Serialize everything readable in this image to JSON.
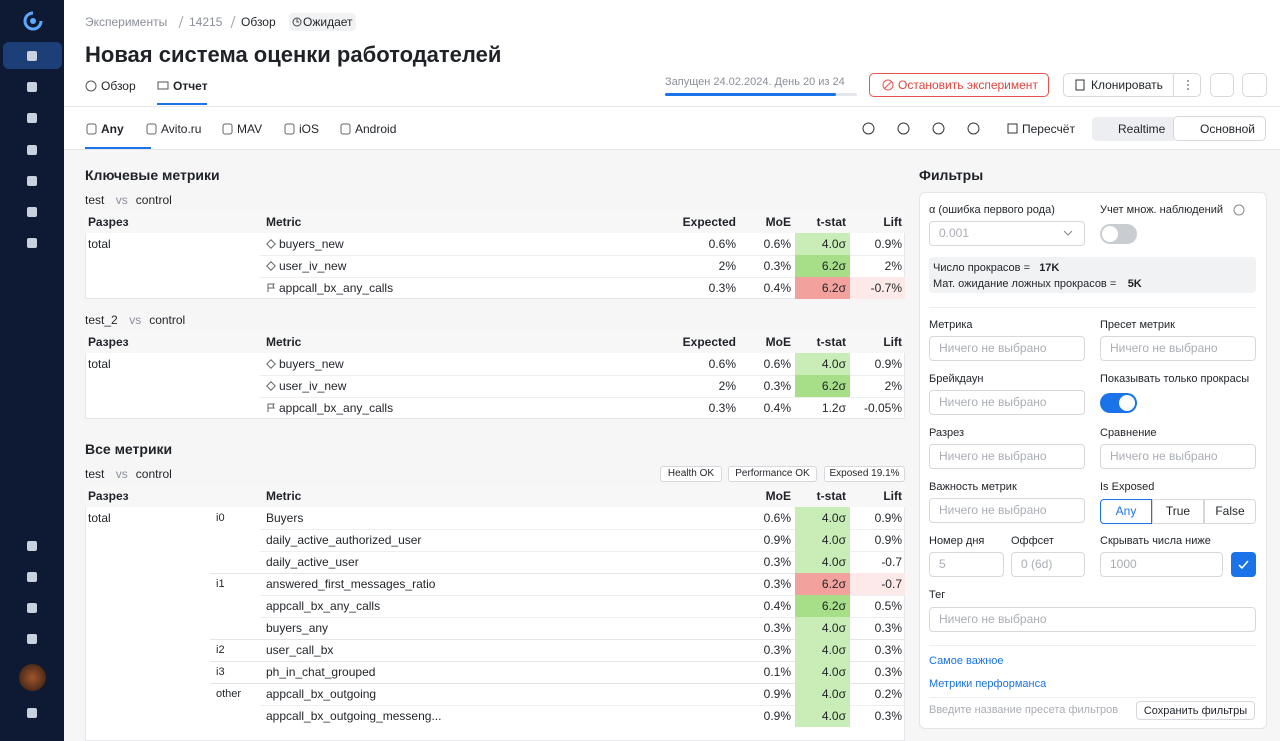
{
  "breadcrumbs": [
    "Эксперименты",
    "14215",
    "Обзор"
  ],
  "status": "Ожидает",
  "title": "Новая система оценки работодателей",
  "view_tabs": [
    "Обзор",
    "Отчет"
  ],
  "launch_info": "Запущен 24.02.2024. День 20 из 24",
  "actions": {
    "stop": "Остановить эксперимент",
    "clone": "Клонировать"
  },
  "platforms": [
    "Any",
    "Avito.ru",
    "MAV",
    "iOS",
    "Android"
  ],
  "toolbar": {
    "recalc": "Пересчёт",
    "realtime": "Realtime",
    "main": "Основной"
  },
  "key_metrics": {
    "title": "Ключевые метрики",
    "columns": [
      "Разрез",
      "Metric",
      "Expected",
      "MoE",
      "t-stat",
      "Lift"
    ],
    "tables": [
      {
        "test": "test",
        "vs": "vs",
        "control": "control",
        "groups": [
          {
            "slice": "total",
            "rows": [
              {
                "icon": "diamond",
                "metric": "buyers_new",
                "expected": "0.6%",
                "moe": "0.6%",
                "tstat": "4.0σ",
                "lift": "0.9%",
                "tstat_bg": "#c9edb6"
              },
              {
                "icon": "diamond",
                "metric": "user_iv_new",
                "expected": "2%",
                "moe": "0.3%",
                "tstat": "6.2σ",
                "lift": "2%",
                "tstat_bg": "#a6df88"
              },
              {
                "icon": "flag",
                "metric": "appcall_bx_any_calls",
                "expected": "0.3%",
                "moe": "0.4%",
                "tstat": "6.2σ",
                "lift": "-0.7%",
                "tstat_bg": "#f3a19d",
                "lift_bg": "#fde9e7"
              }
            ]
          }
        ]
      },
      {
        "test": "test_2",
        "vs": "vs",
        "control": "control",
        "groups": [
          {
            "slice": "total",
            "rows": [
              {
                "icon": "diamond",
                "metric": "buyers_new",
                "expected": "0.6%",
                "moe": "0.6%",
                "tstat": "4.0σ",
                "lift": "0.9%",
                "tstat_bg": "#c9edb6"
              },
              {
                "icon": "diamond",
                "metric": "user_iv_new",
                "expected": "2%",
                "moe": "0.3%",
                "tstat": "6.2σ",
                "lift": "2%",
                "tstat_bg": "#a6df88"
              },
              {
                "icon": "flag",
                "metric": "appcall_bx_any_calls",
                "expected": "0.3%",
                "moe": "0.4%",
                "tstat": "1.2σ",
                "lift": "-0.05%"
              }
            ]
          }
        ]
      }
    ]
  },
  "all_metrics": {
    "title": "Все метрики",
    "test": "test",
    "vs": "vs",
    "control": "control",
    "badges": [
      "Health OK",
      "Performance OK",
      "Exposed 19.1%"
    ],
    "columns": [
      "Разрез",
      "Metric",
      "MoE",
      "t-stat",
      "Lift"
    ],
    "groups": [
      {
        "slice": "total",
        "subgroups": [
          {
            "importance": "i0",
            "rows": [
              {
                "metric": "Buyers",
                "moe": "0.6%",
                "tstat": "4.0σ",
                "lift": "0.9%",
                "tstat_bg": "#c9edb6"
              },
              {
                "metric": "daily_active_authorized_user",
                "moe": "0.9%",
                "tstat": "4.0σ",
                "lift": "0.9%",
                "tstat_bg": "#c9edb6"
              },
              {
                "metric": "daily_active_user",
                "moe": "0.3%",
                "tstat": "4.0σ",
                "lift": "-0.7",
                "tstat_bg": "#c9edb6"
              }
            ]
          },
          {
            "importance": "i1",
            "rows": [
              {
                "metric": "answered_first_messages_ratio",
                "moe": "0.3%",
                "tstat": "6.2σ",
                "lift": "-0.7",
                "tstat_bg": "#f3a19d",
                "lift_bg": "#fde9e7"
              },
              {
                "metric": "appcall_bx_any_calls",
                "moe": "0.4%",
                "tstat": "6.2σ",
                "lift": "0.5%",
                "tstat_bg": "#a6df88"
              },
              {
                "metric": "buyers_any",
                "moe": "0.3%",
                "tstat": "4.0σ",
                "lift": "0.3%",
                "tstat_bg": "#c9edb6"
              }
            ]
          },
          {
            "importance": "i2",
            "rows": [
              {
                "metric": "user_call_bx",
                "moe": "0.3%",
                "tstat": "4.0σ",
                "lift": "0.3%",
                "tstat_bg": "#c9edb6"
              }
            ]
          },
          {
            "importance": "i3",
            "rows": [
              {
                "metric": "ph_in_chat_grouped",
                "moe": "0.1%",
                "tstat": "4.0σ",
                "lift": "0.3%",
                "tstat_bg": "#c9edb6"
              }
            ]
          },
          {
            "importance": "other",
            "rows": [
              {
                "metric": "appcall_bx_outgoing",
                "moe": "0.9%",
                "tstat": "4.0σ",
                "lift": "0.2%",
                "tstat_bg": "#c9edb6"
              },
              {
                "metric": "appcall_bx_outgoing_messeng...",
                "moe": "0.9%",
                "tstat": "4.0σ",
                "lift": "0.3%",
                "tstat_bg": "#c9edb6"
              }
            ]
          }
        ]
      }
    ]
  },
  "filters": {
    "title": "Фильтры",
    "alpha_label": "α (ошибка первого рода)",
    "alpha_value": "0.001",
    "multi_label": "Учет множ. наблюдений",
    "multi_on": false,
    "stats": [
      {
        "label": "Число прокрасов = ",
        "value": "17K"
      },
      {
        "label": "Мат. ожидание ложных прокрасов = ",
        "value": "5K"
      }
    ],
    "placeholder": "Ничего не выбрано",
    "metric": "Метрика",
    "preset": "Пресет метрик",
    "breakdown": "Брейкдаун",
    "only_colored": "Показывать только прокрасы",
    "only_colored_on": true,
    "slice": "Разрез",
    "comparison": "Сравнение",
    "importance": "Важность метрик",
    "is_exposed": "Is Exposed",
    "exposed_options": [
      "Any",
      "True",
      "False"
    ],
    "day": "Номер дня",
    "day_value": "5",
    "offset": "Оффсет",
    "offset_value": "0 (6d)",
    "hide_below": "Скрывать числа ниже",
    "hide_below_value": "1000",
    "tag": "Тег",
    "links": [
      "Самое важное",
      "Метрики перформанса"
    ],
    "preset_input": "Введите название пресета фильтров",
    "save": "Сохранить фильтры"
  }
}
